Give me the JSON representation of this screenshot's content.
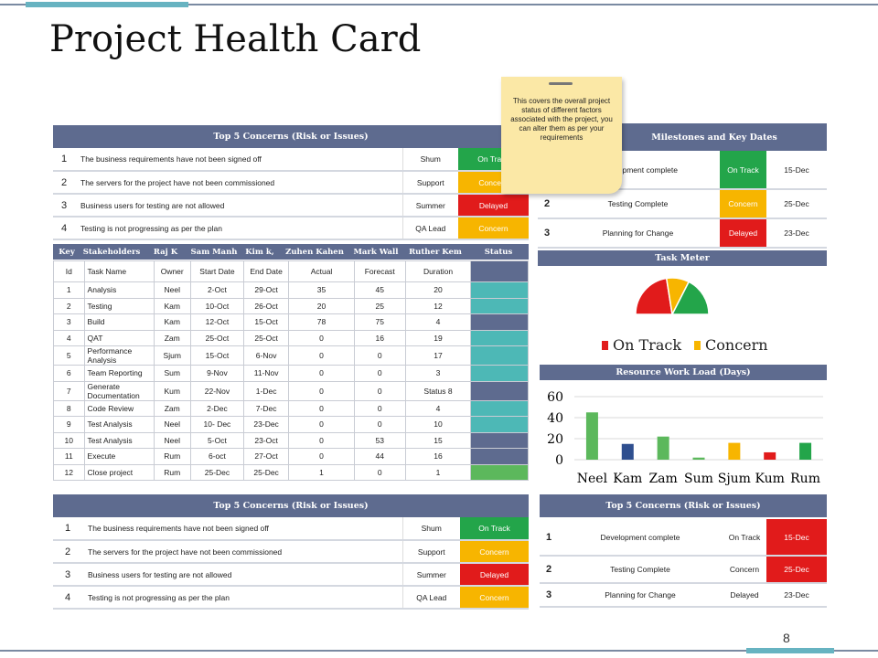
{
  "title": "Project Health Card",
  "page_number": "8",
  "colors": {
    "header": "#5e6b8f",
    "on_track": "#23a54a",
    "concern": "#f7b500",
    "delayed": "#e11b1b",
    "teal": "#4db8b6",
    "navy": "#5e6b8f"
  },
  "concerns_top": {
    "header": "Top 5 Concerns (Risk or Issues)",
    "rows": [
      {
        "num": "1",
        "text": "The business requirements have not been signed off",
        "owner": "Shum",
        "status": "On Track",
        "cls": "onTrack"
      },
      {
        "num": "2",
        "text": "The servers for the project have not been commissioned",
        "owner": "Support",
        "status": "Concern",
        "cls": "concern"
      },
      {
        "num": "3",
        "text": "Business users for testing are not allowed",
        "owner": "Summer",
        "status": "Delayed",
        "cls": "delayed"
      },
      {
        "num": "4",
        "text": "Testing is not progressing as per the plan",
        "owner": "QA Lead",
        "status": "Concern",
        "cls": "concern"
      }
    ]
  },
  "sticky_note": "This covers the overall project status of different factors associated with the project, you can alter them as per your requirements",
  "milestones": {
    "header": "Milestones and Key Dates",
    "rows": [
      {
        "num": "",
        "name": "Development complete",
        "status": "On Track",
        "cls": "onTrack",
        "date": "15-Dec"
      },
      {
        "num": "2",
        "name": "Testing Complete",
        "status": "Concern",
        "cls": "concern",
        "date": "25-Dec"
      },
      {
        "num": "3",
        "name": "Planning for Change",
        "status": "Delayed",
        "cls": "delayed",
        "date": "23-Dec"
      }
    ]
  },
  "stakeholders": {
    "labels": [
      "Key",
      "Stakeholders",
      "Raj K",
      "Sam Manh",
      "Kim k,",
      "Zuhen Kahen",
      "Mark Wall",
      "Ruther Kem",
      "Status"
    ],
    "columns": [
      "Id",
      "Task Name",
      "Owner",
      "Start Date",
      "End Date",
      "Actual",
      "Forecast",
      "Duration"
    ],
    "rows": [
      {
        "id": "1",
        "task": "Analysis",
        "owner": "Neel",
        "start": "2-Oct",
        "end": "29-Oct",
        "actual": "35",
        "forecast": "45",
        "duration": "20",
        "status": "teal"
      },
      {
        "id": "2",
        "task": "Testing",
        "owner": "Kam",
        "start": "10-Oct",
        "end": "26-Oct",
        "actual": "20",
        "forecast": "25",
        "duration": "12",
        "status": "teal"
      },
      {
        "id": "3",
        "task": "Build",
        "owner": "Kam",
        "start": "12-Oct",
        "end": "15-Oct",
        "actual": "78",
        "forecast": "75",
        "duration": "4",
        "status": "navy"
      },
      {
        "id": "4",
        "task": "QAT",
        "owner": "Zam",
        "start": "25-Oct",
        "end": "25-Oct",
        "actual": "0",
        "forecast": "16",
        "duration": "19",
        "status": "teal"
      },
      {
        "id": "5",
        "task": "Performance Analysis",
        "owner": "Sjum",
        "start": "15-Oct",
        "end": "6-Nov",
        "actual": "0",
        "forecast": "0",
        "duration": "17",
        "status": "teal"
      },
      {
        "id": "6",
        "task": "Team Reporting",
        "owner": "Sum",
        "start": "9-Nov",
        "end": "11-Nov",
        "actual": "0",
        "forecast": "0",
        "duration": "3",
        "status": "teal"
      },
      {
        "id": "7",
        "task": "Generate Documentation",
        "owner": "Kum",
        "start": "22-Nov",
        "end": "1-Dec",
        "actual": "0",
        "forecast": "0",
        "duration": "Status 8",
        "status": "navy"
      },
      {
        "id": "8",
        "task": "Code Review",
        "owner": "Zam",
        "start": "2-Dec",
        "end": "7-Dec",
        "actual": "0",
        "forecast": "0",
        "duration": "4",
        "status": "teal"
      },
      {
        "id": "9",
        "task": "Test Analysis",
        "owner": "Neel",
        "start": "10- Dec",
        "end": "23-Dec",
        "actual": "0",
        "forecast": "0",
        "duration": "10",
        "status": "teal"
      },
      {
        "id": "10",
        "task": "Test Analysis",
        "owner": "Neel",
        "start": "5-Oct",
        "end": "23-Oct",
        "actual": "0",
        "forecast": "53",
        "duration": "15",
        "status": "navy"
      },
      {
        "id": "11",
        "task": "Execute",
        "owner": "Rum",
        "start": "6-oct",
        "end": "27-Oct",
        "actual": "0",
        "forecast": "44",
        "duration": "16",
        "status": "navy"
      },
      {
        "id": "12",
        "task": "Close project",
        "owner": "Rum",
        "start": "25-Dec",
        "end": "25-Dec",
        "actual": "1",
        "forecast": "0",
        "duration": "1",
        "status": "green"
      }
    ]
  },
  "task_meter": {
    "header": "Task Meter",
    "legend": [
      "On Track",
      "Concern"
    ]
  },
  "concerns_bottom": {
    "header": "Top 5 Concerns (Risk or Issues)",
    "rows": [
      {
        "num": "1",
        "text": "The business requirements have not been signed off",
        "owner": "Shum",
        "status": "On Track",
        "cls": "onTrack"
      },
      {
        "num": "2",
        "text": "The servers for the project have not been commissioned",
        "owner": "Support",
        "status": "Concern",
        "cls": "concern"
      },
      {
        "num": "3",
        "text": "Business users for testing are not allowed",
        "owner": "Summer",
        "status": "Delayed",
        "cls": "delayed"
      },
      {
        "num": "4",
        "text": "Testing is not progressing as per the plan",
        "owner": "QA Lead",
        "status": "Concern",
        "cls": "concern"
      }
    ]
  },
  "milestones_bottom": {
    "header": "Top 5 Concerns (Risk or Issues)",
    "rows": [
      {
        "num": "1",
        "name": "Development complete",
        "status": "On Track",
        "date": "15-Dec",
        "cls": "delayed"
      },
      {
        "num": "2",
        "name": "Testing Complete",
        "status": "Concern",
        "date": "25-Dec",
        "cls": "delayed"
      },
      {
        "num": "3",
        "name": "Planning  for Change",
        "status": "Delayed",
        "date": "23-Dec",
        "cls": ""
      }
    ]
  },
  "chart_data": [
    {
      "type": "pie",
      "title": "Task Meter",
      "subtype": "semicircle gauge",
      "categories": [
        "On Track",
        "Concern",
        "On Track"
      ],
      "values": [
        45,
        20,
        35
      ],
      "colors": [
        "#e11b1b",
        "#f7b500",
        "#23a54a"
      ],
      "legend": [
        "On Track",
        "Concern"
      ]
    },
    {
      "type": "bar",
      "title": "Resource Work Load (Days)",
      "categories": [
        "Neel",
        "Kam",
        "Zam",
        "Sum",
        "Sjum",
        "Kum",
        "Rum"
      ],
      "values": [
        45,
        15,
        22,
        2,
        16,
        7,
        16
      ],
      "colors": [
        "#5cb85c",
        "#2f4f8f",
        "#5cb85c",
        "#5cb85c",
        "#f7b500",
        "#e11b1b",
        "#23a54a"
      ],
      "ylim": [
        0,
        60
      ],
      "yticks": [
        "0",
        "20",
        "40",
        "60"
      ],
      "grid": true
    }
  ]
}
